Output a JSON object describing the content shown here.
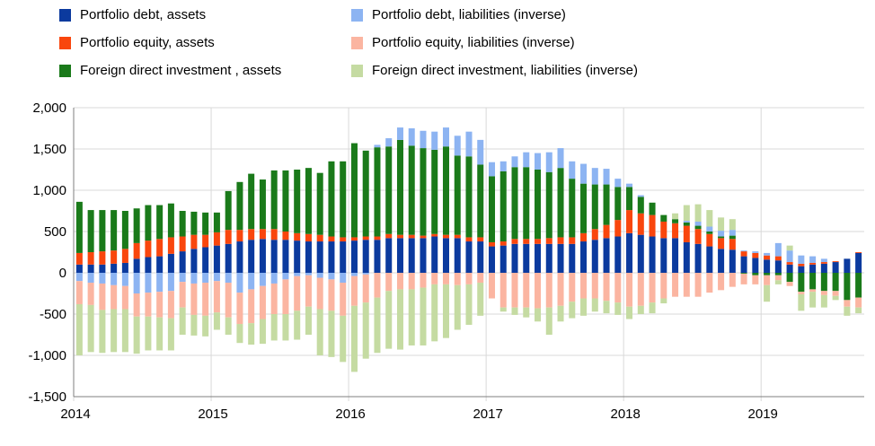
{
  "colors": {
    "pd_assets": "#0b3a9e",
    "pe_assets": "#f9460d",
    "fdi_assets": "#1a7a1a",
    "pd_liab": "#8db4f2",
    "pe_liab": "#fbb5a1",
    "fdi_liab": "#c5dba2",
    "grid": "#d9d9d9",
    "axis": "#7f7f7f"
  },
  "chart_data": {
    "type": "bar",
    "stacked": true,
    "ylim": [
      -1500,
      2000
    ],
    "yticks": [
      -1500,
      -1000,
      -500,
      0,
      500,
      1000,
      1500,
      2000
    ],
    "ytick_labels": [
      "-1,500",
      "-1,000",
      "-500",
      "0",
      "500",
      "1,000",
      "1,500",
      "2,000"
    ],
    "xticks": [
      "2014",
      "2015",
      "2016",
      "2017",
      "2018",
      "2019"
    ],
    "x_start": "2014-01",
    "frequency": "monthly",
    "xlim_months": 69,
    "grid": true,
    "legend_position": "top",
    "series": [
      {
        "name": "Portfolio debt, assets",
        "color_key": "pd_assets",
        "values": [
          100,
          100,
          100,
          110,
          120,
          170,
          190,
          200,
          230,
          260,
          290,
          310,
          330,
          350,
          380,
          400,
          410,
          400,
          400,
          390,
          380,
          380,
          380,
          380,
          390,
          400,
          400,
          420,
          420,
          420,
          420,
          440,
          420,
          420,
          380,
          380,
          320,
          330,
          350,
          350,
          350,
          350,
          350,
          350,
          380,
          400,
          420,
          440,
          480,
          460,
          440,
          420,
          420,
          370,
          350,
          320,
          290,
          280,
          200,
          180,
          160,
          150,
          100,
          80,
          100,
          110,
          130,
          170,
          240
        ]
      },
      {
        "name": "Portfolio equity,  assets",
        "color_key": "pe_assets",
        "values": [
          140,
          150,
          160,
          160,
          170,
          190,
          200,
          210,
          200,
          180,
          170,
          150,
          160,
          170,
          140,
          130,
          120,
          130,
          100,
          90,
          90,
          80,
          60,
          50,
          40,
          40,
          40,
          50,
          40,
          40,
          30,
          30,
          40,
          40,
          50,
          50,
          50,
          50,
          60,
          60,
          60,
          70,
          80,
          80,
          100,
          130,
          160,
          200,
          280,
          260,
          260,
          200,
          180,
          200,
          180,
          150,
          130,
          130,
          60,
          60,
          50,
          50,
          30,
          30,
          20,
          20,
          10,
          0,
          10
        ]
      },
      {
        "name": "Foreign direct investment , assets",
        "color_key": "fdi_assets",
        "values": [
          620,
          510,
          500,
          490,
          460,
          420,
          430,
          410,
          410,
          310,
          280,
          270,
          240,
          470,
          580,
          670,
          600,
          710,
          740,
          770,
          800,
          750,
          910,
          920,
          1140,
          1040,
          1080,
          1060,
          1150,
          1080,
          1060,
          1020,
          1070,
          960,
          980,
          880,
          800,
          850,
          870,
          870,
          840,
          800,
          840,
          710,
          600,
          540,
          490,
          400,
          280,
          200,
          150,
          80,
          50,
          40,
          40,
          30,
          20,
          40,
          -10,
          -30,
          -30,
          -30,
          -110,
          -230,
          -200,
          -220,
          -220,
          -330,
          -300
        ]
      },
      {
        "name": "Portfolio debt, liabilities (inverse)",
        "color_key": "pd_liab",
        "values": [
          -100,
          -120,
          -130,
          -150,
          -160,
          -250,
          -240,
          -230,
          -220,
          -110,
          -130,
          -120,
          -100,
          -120,
          -240,
          -200,
          -160,
          -130,
          -80,
          -40,
          -30,
          -60,
          -80,
          -120,
          -40,
          -20,
          30,
          100,
          150,
          210,
          210,
          220,
          230,
          240,
          300,
          300,
          170,
          120,
          130,
          180,
          200,
          240,
          240,
          210,
          240,
          200,
          190,
          100,
          40,
          20,
          0,
          0,
          0,
          20,
          50,
          60,
          70,
          70,
          10,
          20,
          30,
          160,
          140,
          100,
          80,
          40,
          0,
          0,
          0
        ]
      },
      {
        "name": "Portfolio equity, liabilities (inverse)",
        "color_key": "pe_liab",
        "values": [
          -280,
          -270,
          -320,
          -290,
          -280,
          -280,
          -290,
          -310,
          -330,
          -310,
          -380,
          -400,
          -380,
          -420,
          -380,
          -410,
          -400,
          -370,
          -420,
          -420,
          -380,
          -380,
          -380,
          -400,
          -360,
          -340,
          -300,
          -220,
          -200,
          -200,
          -180,
          -140,
          -140,
          -150,
          -140,
          -120,
          -310,
          -420,
          -420,
          -420,
          -430,
          -420,
          -400,
          -350,
          -310,
          -310,
          -340,
          -360,
          -410,
          -400,
          -360,
          -310,
          -290,
          -290,
          -290,
          -240,
          -210,
          -170,
          -130,
          -110,
          -120,
          -60,
          -50,
          -30,
          -30,
          -50,
          -60,
          -80,
          -120
        ]
      },
      {
        "name": "Foreign direct investment, liabilities (inverse)",
        "color_key": "fdi_liab",
        "values": [
          -620,
          -570,
          -520,
          -520,
          -520,
          -450,
          -410,
          -400,
          -390,
          -330,
          -250,
          -250,
          -210,
          -210,
          -230,
          -260,
          -300,
          -320,
          -320,
          -350,
          -340,
          -560,
          -560,
          -560,
          -800,
          -680,
          -670,
          -700,
          -730,
          -680,
          -700,
          -690,
          -650,
          -540,
          -490,
          -400,
          0,
          -50,
          -90,
          -120,
          -160,
          -330,
          -190,
          -200,
          -210,
          -160,
          -150,
          -150,
          -150,
          -100,
          -130,
          -60,
          70,
          190,
          210,
          200,
          160,
          130,
          0,
          0,
          -200,
          -50,
          60,
          -200,
          -190,
          -150,
          -50,
          -110,
          -70
        ]
      }
    ],
    "legend_entries": [
      {
        "label": "Portfolio debt, assets",
        "color_key": "pd_assets"
      },
      {
        "label": "Portfolio debt, liabilities (inverse)",
        "color_key": "pd_liab"
      },
      {
        "label": "Portfolio equity,  assets",
        "color_key": "pe_assets"
      },
      {
        "label": "Portfolio equity, liabilities (inverse)",
        "color_key": "pe_liab"
      },
      {
        "label": "Foreign direct investment , assets",
        "color_key": "fdi_assets"
      },
      {
        "label": "Foreign direct investment, liabilities (inverse)",
        "color_key": "fdi_liab"
      }
    ]
  }
}
